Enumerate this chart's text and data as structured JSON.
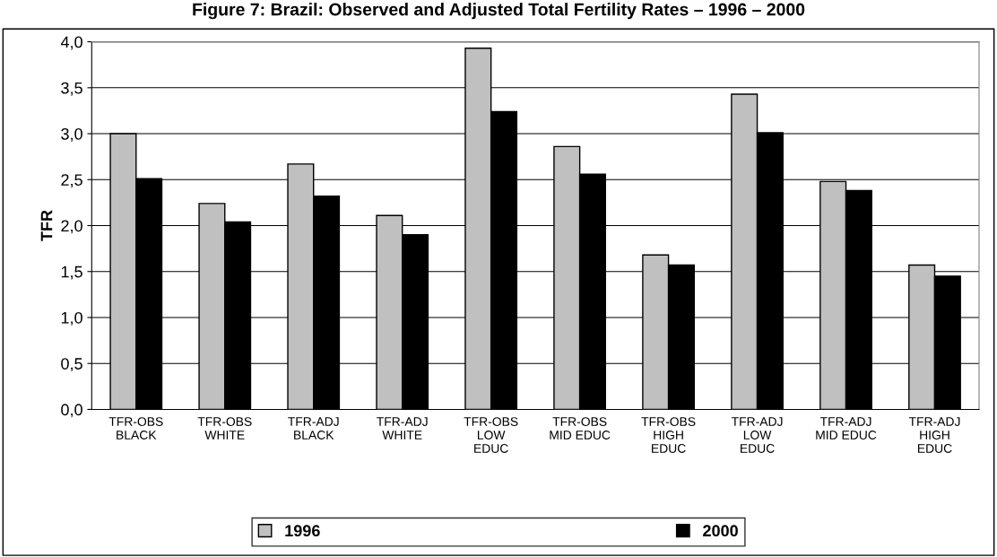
{
  "chart_data": {
    "type": "bar",
    "title": "Figure 7: Brazil: Observed and Adjusted Total Fertility Rates – 1996 – 2000",
    "ylabel": "TFR",
    "categories": [
      "TFR-OBS\nBLACK",
      "TFR-OBS\nWHITE",
      "TFR-ADJ\nBLACK",
      "TFR-ADJ\nWHITE",
      "TFR-OBS\nLOW\nEDUC",
      "TFR-OBS\nMID EDUC",
      "TFR-OBS\nHIGH\nEDUC",
      "TFR-ADJ\nLOW\nEDUC",
      "TFR-ADJ\nMID EDUC",
      "TFR-ADJ\nHIGH\nEDUC"
    ],
    "series": [
      {
        "name": "1996",
        "color": "#c0c0c0",
        "values": [
          3.0,
          2.24,
          2.67,
          2.11,
          3.93,
          2.86,
          1.68,
          3.43,
          2.48,
          1.57
        ]
      },
      {
        "name": "2000",
        "color": "#000000",
        "values": [
          2.51,
          2.04,
          2.32,
          1.9,
          3.24,
          2.56,
          1.57,
          3.01,
          2.38,
          1.45
        ]
      }
    ],
    "ylim": [
      0,
      4
    ],
    "yticks": [
      {
        "value": 0,
        "label": "0,0"
      },
      {
        "value": 0.5,
        "label": "0,5"
      },
      {
        "value": 1,
        "label": "1,0"
      },
      {
        "value": 1.5,
        "label": "1,5"
      },
      {
        "value": 2,
        "label": "2,0"
      },
      {
        "value": 2.5,
        "label": "2,5"
      },
      {
        "value": 3,
        "label": "3,0"
      },
      {
        "value": 3.5,
        "label": "3,5"
      },
      {
        "value": 4,
        "label": "4,0"
      }
    ],
    "grid": "y",
    "legend": "bottom"
  }
}
